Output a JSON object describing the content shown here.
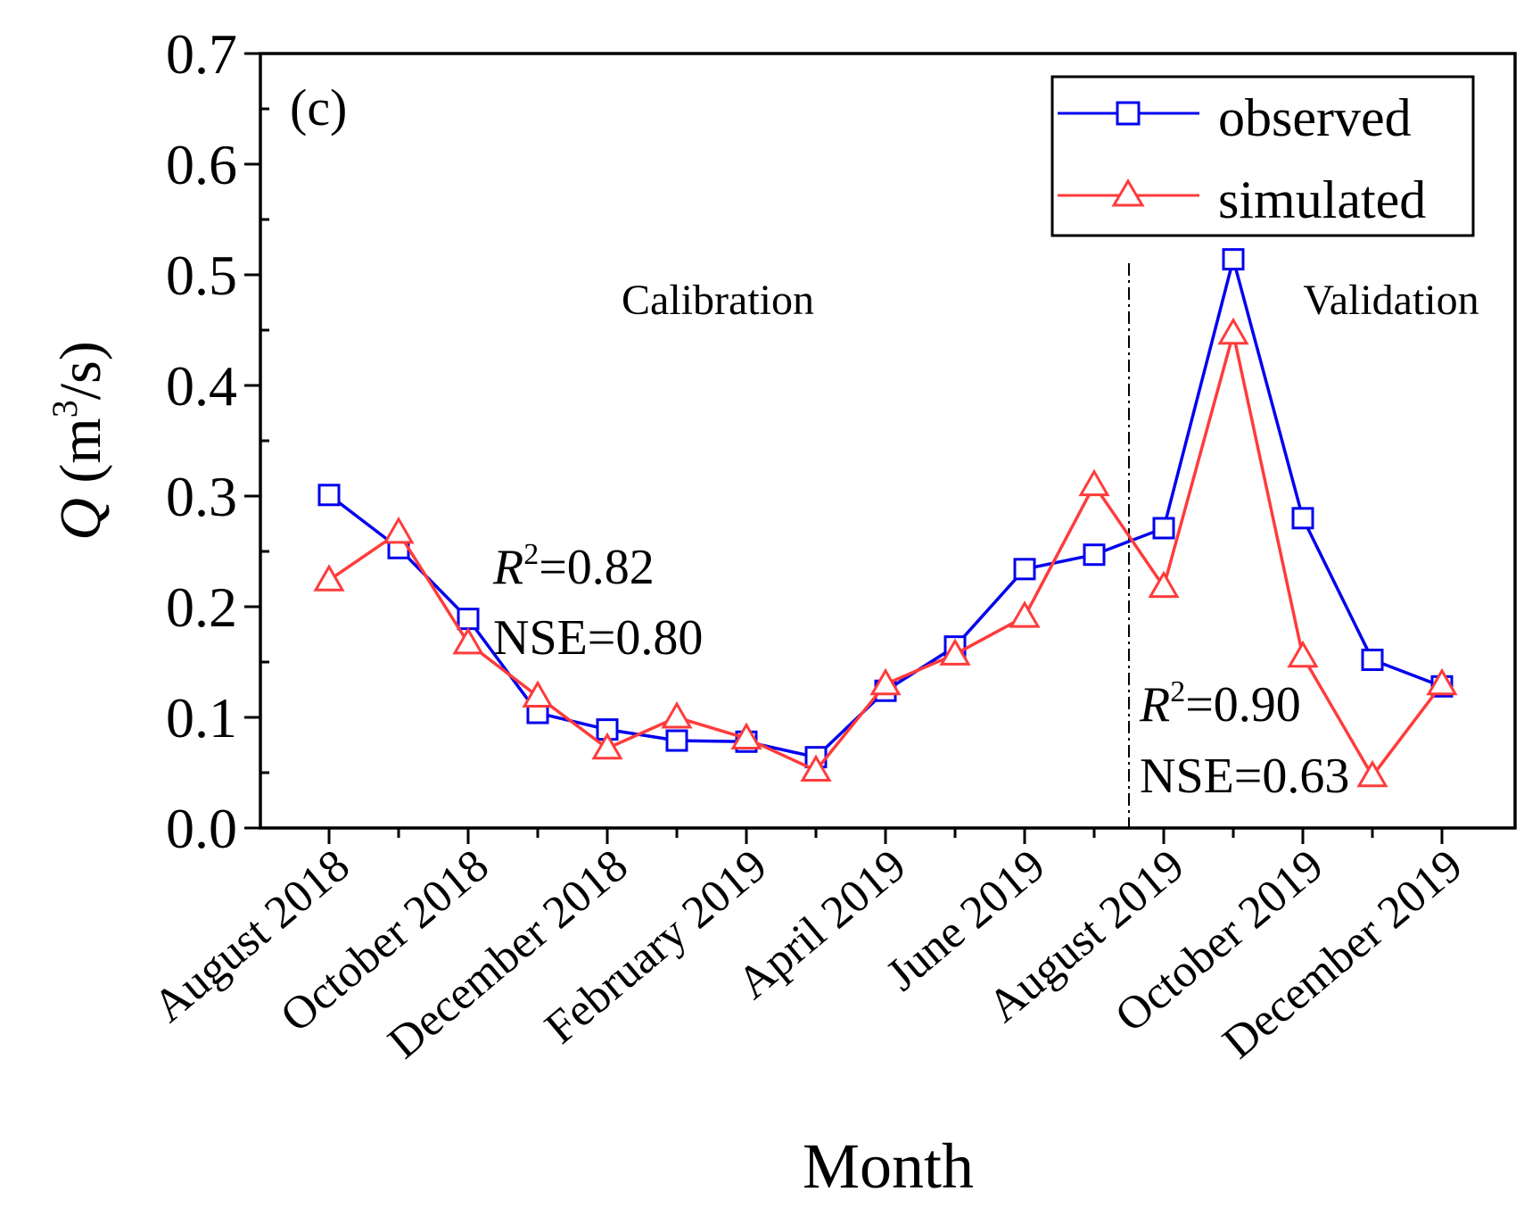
{
  "chart_data": {
    "type": "line",
    "panel_label": "(c)",
    "ylabel_q": "Q",
    "ylabel_unit_open": " (m",
    "ylabel_unit_sup": "3",
    "ylabel_unit_close": "/s)",
    "xlabel": "Month",
    "ylim": [
      0,
      0.7
    ],
    "yticks": [
      "0.0",
      "0.1",
      "0.2",
      "0.3",
      "0.4",
      "0.5",
      "0.6",
      "0.7"
    ],
    "x_tick_labels": [
      "August 2018",
      "October 2018",
      "December 2018",
      "February 2019",
      "April 2019",
      "June 2019",
      "August 2019",
      "October 2019",
      "December 2019"
    ],
    "series": [
      {
        "name": "observed",
        "color": "#0000ee",
        "marker": "square",
        "values": [
          0.301,
          0.253,
          0.189,
          0.104,
          0.089,
          0.079,
          0.078,
          0.064,
          0.124,
          0.164,
          0.234,
          0.247,
          0.271,
          0.514,
          0.28,
          0.152,
          0.128
        ]
      },
      {
        "name": "simulated",
        "color": "#ff3b3b",
        "marker": "triangle",
        "values": [
          0.224,
          0.267,
          0.167,
          0.119,
          0.072,
          0.1,
          0.081,
          0.052,
          0.13,
          0.157,
          0.191,
          0.31,
          0.218,
          0.447,
          0.155,
          0.047,
          0.13
        ]
      }
    ],
    "calibration_label": "Calibration",
    "validation_label": "Validation",
    "calibration_stats": {
      "r_symbol": "R",
      "r_sup": "2",
      "r_value": "=0.82",
      "nse": "NSE=0.80"
    },
    "validation_stats": {
      "r_symbol": "R",
      "r_sup": "2",
      "r_value": "=0.90",
      "nse": "NSE=0.63"
    },
    "divider_position_months": 11.5,
    "legend_position": "top-right"
  }
}
